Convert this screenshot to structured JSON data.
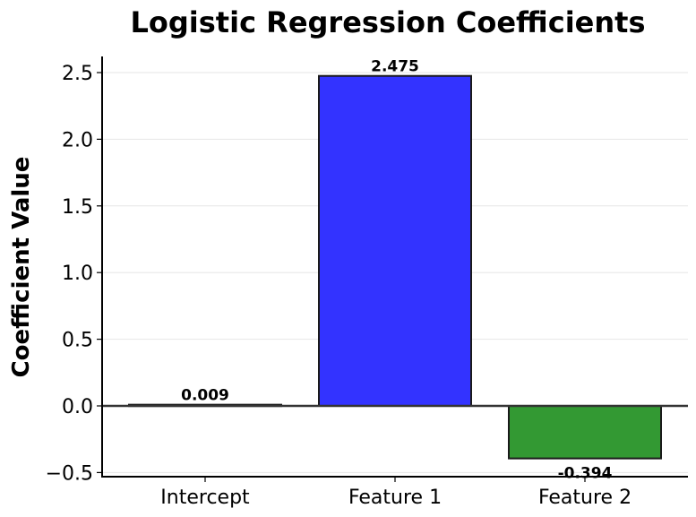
{
  "chart_data": {
    "type": "bar",
    "title": "Logistic Regression Coefficients",
    "xlabel": "",
    "ylabel": "Coefficient Value",
    "categories": [
      "Intercept",
      "Feature 1",
      "Feature 2"
    ],
    "values": [
      0.009,
      2.475,
      -0.394
    ],
    "value_labels": [
      "0.009",
      "2.475",
      "-0.394"
    ],
    "colors": [
      "#000000",
      "#3333ff",
      "#339933"
    ],
    "edge_color": "#1a1a1a",
    "ylim": [
      -0.53,
      2.62
    ],
    "yticks": [
      -0.5,
      0.0,
      0.5,
      1.0,
      1.5,
      2.0,
      2.5
    ],
    "ytick_labels": [
      "−0.5",
      "0.0",
      "0.5",
      "1.0",
      "1.5",
      "2.0",
      "2.5"
    ],
    "grid": {
      "y": true,
      "x": false,
      "color": "#e6e6e6"
    },
    "zero_line": true,
    "legend": null
  }
}
